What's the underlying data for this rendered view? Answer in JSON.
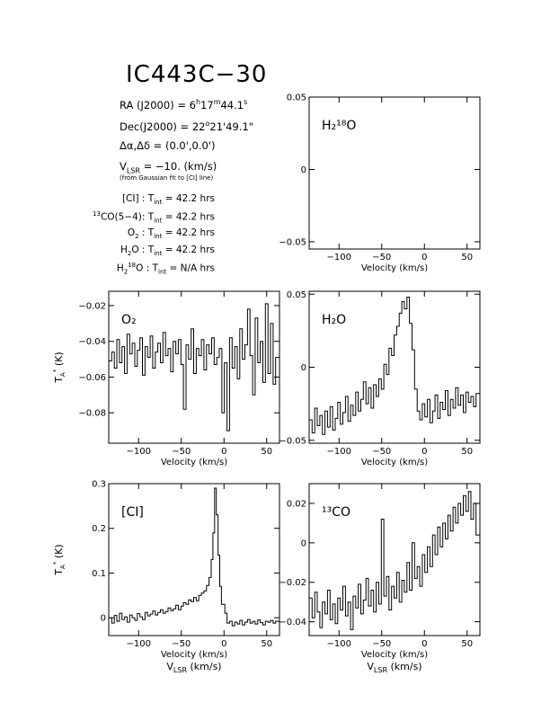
{
  "title": "IC443C−30",
  "source_info": {
    "ra_label": "RA (J2000)",
    "ra_h": "6",
    "ra_m": "17",
    "ra_s": "44.1",
    "dec_label": "Dec(J2000)",
    "dec_d": "22",
    "dec_rest": "21'49.1\"",
    "offset_label": "Δα,Δδ",
    "offset_value": "(0.0',0.0')",
    "vlsr_label": "V",
    "vlsr_sub": "LSR",
    "vlsr_value": "= −10. (km/s)",
    "vlsr_note": "(from Gaussian fit to [CI] line)"
  },
  "observations": [
    {
      "line": "[CI] :",
      "tint": "= 42.2 hrs"
    },
    {
      "line": "CO(5−4):",
      "tint": "= 42.2 hrs"
    },
    {
      "line": "O :",
      "tint": "= 42.2 hrs"
    },
    {
      "line": "H O :",
      "tint": "= 42.2 hrs"
    },
    {
      "line": "H O :",
      "tint": "= N/A hrs"
    }
  ],
  "chart_data": [
    {
      "type": "line",
      "panel": "H2_18O",
      "label": "H₂¹⁸O",
      "xlabel": "Velocity (km/s)",
      "ylabel": "",
      "xlim": [
        -135,
        65
      ],
      "ylim": [
        -0.055,
        0.05
      ],
      "xticks": [
        -100,
        -50,
        0,
        50
      ],
      "yticks": [
        -0.05,
        0,
        0.05
      ],
      "ytick_labels": [
        "−0.05",
        "0",
        "0.05"
      ],
      "series": []
    },
    {
      "type": "line",
      "panel": "O2",
      "label": "O₂",
      "xlabel": "Velocity (km/s)",
      "ylabel": "T*A (K)",
      "xlim": [
        -135,
        65
      ],
      "ylim": [
        -0.097,
        -0.012
      ],
      "xticks": [
        -100,
        -50,
        0,
        50
      ],
      "yticks": [
        -0.08,
        -0.06,
        -0.04,
        -0.02
      ],
      "ytick_labels": [
        "−0.08",
        "−0.06",
        "−0.04",
        "−0.02"
      ],
      "series": [
        {
          "x": [
            -133,
            -130,
            -127,
            -124,
            -121,
            -118,
            -115,
            -112,
            -109,
            -106,
            -103,
            -100,
            -97,
            -94,
            -91,
            -88,
            -85,
            -82,
            -79,
            -76,
            -73,
            -70,
            -67,
            -64,
            -61,
            -58,
            -55,
            -52,
            -49,
            -46,
            -43,
            -40,
            -37,
            -34,
            -31,
            -28,
            -25,
            -22,
            -19,
            -16,
            -13,
            -10,
            -7,
            -4,
            -1,
            2,
            5,
            8,
            11,
            14,
            17,
            20,
            23,
            26,
            29,
            32,
            35,
            38,
            41,
            44,
            47,
            50,
            53,
            56,
            59,
            62
          ],
          "y": [
            -0.051,
            -0.046,
            -0.055,
            -0.039,
            -0.052,
            -0.043,
            -0.058,
            -0.036,
            -0.047,
            -0.041,
            -0.054,
            -0.045,
            -0.038,
            -0.059,
            -0.043,
            -0.049,
            -0.037,
            -0.055,
            -0.046,
            -0.041,
            -0.052,
            -0.035,
            -0.048,
            -0.044,
            -0.057,
            -0.04,
            -0.047,
            -0.039,
            -0.053,
            -0.078,
            -0.042,
            -0.05,
            -0.033,
            -0.058,
            -0.044,
            -0.048,
            -0.039,
            -0.056,
            -0.042,
            -0.047,
            -0.038,
            -0.053,
            -0.049,
            -0.044,
            -0.08,
            -0.052,
            -0.09,
            -0.038,
            -0.055,
            -0.043,
            -0.061,
            -0.033,
            -0.05,
            -0.042,
            -0.022,
            -0.048,
            -0.07,
            -0.027,
            -0.052,
            -0.04,
            -0.063,
            -0.019,
            -0.058,
            -0.03,
            -0.064,
            -0.049
          ]
        }
      ]
    },
    {
      "type": "line",
      "panel": "H2O",
      "label": "H₂O",
      "xlabel": "Velocity (km/s)",
      "ylabel": "",
      "xlim": [
        -135,
        65
      ],
      "ylim": [
        -0.052,
        0.052
      ],
      "xticks": [
        -100,
        -50,
        0,
        50
      ],
      "yticks": [
        -0.05,
        0,
        0.05
      ],
      "ytick_labels": [
        "−0.05",
        "0",
        "0.05"
      ],
      "series": [
        {
          "x": [
            -133,
            -130,
            -127,
            -124,
            -121,
            -118,
            -115,
            -112,
            -109,
            -106,
            -103,
            -100,
            -97,
            -94,
            -91,
            -88,
            -85,
            -82,
            -79,
            -76,
            -73,
            -70,
            -67,
            -64,
            -61,
            -58,
            -55,
            -52,
            -49,
            -46,
            -43,
            -40,
            -37,
            -34,
            -31,
            -28,
            -25,
            -22,
            -19,
            -16,
            -13,
            -10,
            -7,
            -4,
            -1,
            2,
            5,
            8,
            11,
            14,
            17,
            20,
            23,
            26,
            29,
            32,
            35,
            38,
            41,
            44,
            47,
            50,
            53,
            56,
            59,
            62
          ],
          "y": [
            -0.036,
            -0.045,
            -0.028,
            -0.04,
            -0.033,
            -0.046,
            -0.03,
            -0.041,
            -0.027,
            -0.043,
            -0.035,
            -0.024,
            -0.039,
            -0.031,
            -0.02,
            -0.037,
            -0.026,
            -0.033,
            -0.017,
            -0.03,
            -0.022,
            -0.01,
            -0.025,
            -0.014,
            -0.028,
            -0.012,
            -0.02,
            -0.008,
            -0.015,
            0.002,
            -0.005,
            0.013,
            0.008,
            0.022,
            0.028,
            0.037,
            0.045,
            0.04,
            0.048,
            0.03,
            0.012,
            -0.015,
            -0.03,
            -0.036,
            -0.025,
            -0.034,
            -0.022,
            -0.038,
            -0.03,
            -0.019,
            -0.035,
            -0.024,
            -0.029,
            -0.016,
            -0.033,
            -0.022,
            -0.028,
            -0.014,
            -0.026,
            -0.019,
            -0.031,
            -0.017,
            -0.024,
            -0.02,
            -0.027,
            -0.018
          ]
        }
      ]
    },
    {
      "type": "line",
      "panel": "CI",
      "label": "[CI]",
      "xlabel": "Velocity (km/s)",
      "xlabel2": "V",
      "xlabel2_sub": "LSR",
      "xlabel2_rest": " (km/s)",
      "ylabel": "T*A (K)",
      "xlim": [
        -135,
        65
      ],
      "ylim": [
        -0.04,
        0.3
      ],
      "xticks": [
        -100,
        -50,
        0,
        50
      ],
      "yticks": [
        0,
        0.1,
        0.2,
        0.3
      ],
      "ytick_labels": [
        "0",
        "0.1",
        "0.2",
        "0.3"
      ],
      "series": [
        {
          "x": [
            -133,
            -130,
            -127,
            -124,
            -121,
            -118,
            -115,
            -112,
            -109,
            -106,
            -103,
            -100,
            -97,
            -94,
            -91,
            -88,
            -85,
            -82,
            -79,
            -76,
            -73,
            -70,
            -67,
            -64,
            -61,
            -58,
            -55,
            -52,
            -49,
            -46,
            -43,
            -40,
            -37,
            -34,
            -31,
            -28,
            -25,
            -22,
            -19,
            -16,
            -14,
            -12,
            -10,
            -8,
            -6,
            -4,
            -2,
            0,
            2,
            5,
            8,
            11,
            14,
            17,
            20,
            23,
            26,
            29,
            32,
            35,
            38,
            41,
            44,
            47,
            50,
            53,
            56,
            59,
            62
          ],
          "y": [
            0.0,
            -0.012,
            0.005,
            -0.008,
            0.01,
            -0.004,
            0.002,
            -0.01,
            0.006,
            0.0,
            -0.006,
            0.009,
            0.002,
            -0.004,
            0.012,
            0.004,
            0.008,
            0.015,
            0.006,
            0.012,
            0.018,
            0.01,
            0.014,
            0.022,
            0.016,
            0.02,
            0.028,
            0.018,
            0.026,
            0.034,
            0.03,
            0.04,
            0.036,
            0.045,
            0.038,
            0.05,
            0.055,
            0.06,
            0.072,
            0.09,
            0.13,
            0.19,
            0.29,
            0.23,
            0.14,
            0.07,
            0.03,
            0.03,
            0.01,
            -0.012,
            -0.008,
            -0.018,
            -0.01,
            -0.014,
            -0.006,
            -0.016,
            -0.01,
            -0.004,
            -0.012,
            -0.008,
            -0.014,
            -0.005,
            -0.011,
            -0.016,
            -0.008,
            -0.01,
            -0.006,
            -0.012,
            -0.008
          ]
        }
      ]
    },
    {
      "type": "line",
      "panel": "13CO",
      "label": "¹³CO",
      "xlabel": "Velocity (km/s)",
      "xlabel2": "V",
      "xlabel2_sub": "LSR",
      "xlabel2_rest": " (km/s)",
      "ylabel": "",
      "xlim": [
        -135,
        65
      ],
      "ylim": [
        -0.047,
        0.03
      ],
      "xticks": [
        -100,
        -50,
        0,
        50
      ],
      "yticks": [
        -0.04,
        -0.02,
        0,
        0.02
      ],
      "ytick_labels": [
        "−0.04",
        "−0.02",
        "0",
        "0.02"
      ],
      "series": [
        {
          "x": [
            -133,
            -130,
            -127,
            -124,
            -121,
            -118,
            -115,
            -112,
            -109,
            -106,
            -103,
            -100,
            -97,
            -94,
            -91,
            -88,
            -85,
            -82,
            -79,
            -76,
            -73,
            -70,
            -67,
            -64,
            -61,
            -58,
            -55,
            -52,
            -49,
            -46,
            -43,
            -40,
            -37,
            -34,
            -31,
            -28,
            -25,
            -22,
            -19,
            -16,
            -13,
            -10,
            -7,
            -4,
            -1,
            2,
            5,
            8,
            11,
            14,
            17,
            20,
            23,
            26,
            29,
            32,
            35,
            38,
            41,
            44,
            47,
            50,
            53,
            56,
            59,
            62
          ],
          "y": [
            -0.028,
            -0.038,
            -0.025,
            -0.035,
            -0.043,
            -0.03,
            -0.036,
            -0.024,
            -0.039,
            -0.031,
            -0.041,
            -0.028,
            -0.034,
            -0.022,
            -0.037,
            -0.03,
            -0.044,
            -0.027,
            -0.033,
            -0.021,
            -0.036,
            -0.029,
            -0.018,
            -0.032,
            -0.024,
            -0.035,
            -0.02,
            -0.031,
            0.012,
            -0.027,
            -0.017,
            -0.034,
            -0.022,
            -0.028,
            -0.015,
            -0.03,
            -0.019,
            -0.025,
            -0.01,
            -0.024,
            0.0,
            -0.018,
            -0.012,
            -0.022,
            -0.006,
            -0.015,
            -0.002,
            -0.012,
            0.004,
            -0.006,
            0.008,
            -0.002,
            0.01,
            0.002,
            0.014,
            0.006,
            0.018,
            0.01,
            0.02,
            0.014,
            0.024,
            0.016,
            0.026,
            0.012,
            0.02,
            0.004
          ]
        }
      ]
    }
  ]
}
